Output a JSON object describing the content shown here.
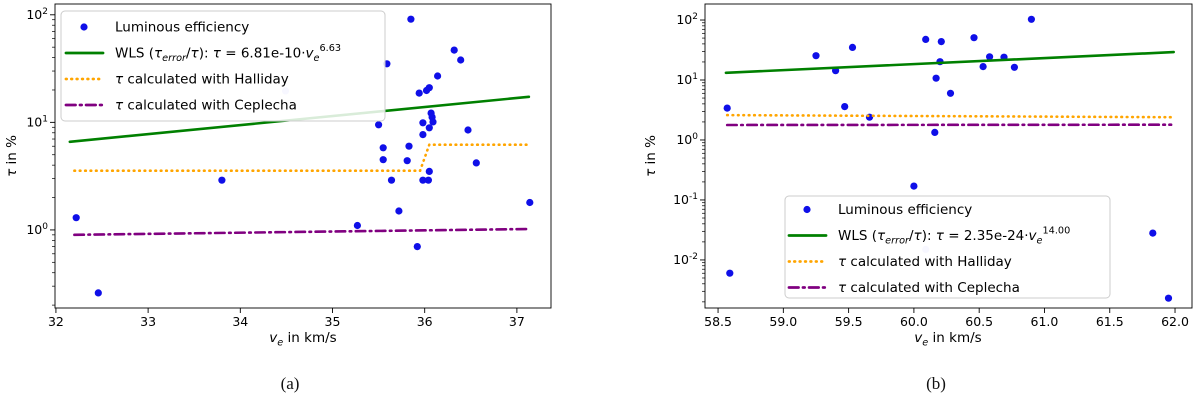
{
  "figure": {
    "caption_a": "(a)",
    "caption_b": "(b)"
  },
  "chart_data": [
    {
      "type": "scatter",
      "panel": "a",
      "caption": "(a)",
      "xlabel": [
        {
          "t": "v",
          "i": 1
        },
        {
          "t": "e",
          "sub": 1,
          "i": 1
        },
        {
          "t": " in km/s"
        }
      ],
      "ylabel": [
        {
          "t": "τ",
          "i": 1
        },
        {
          "t": " in %"
        }
      ],
      "xscale": "linear",
      "yscale": "log",
      "xlim": [
        31.99,
        37.37
      ],
      "ylim": [
        0.188,
        126
      ],
      "xticks": [
        {
          "v": 32,
          "l": "32"
        },
        {
          "v": 33,
          "l": "33"
        },
        {
          "v": 34,
          "l": "34"
        },
        {
          "v": 35,
          "l": "35"
        },
        {
          "v": 36,
          "l": "36"
        },
        {
          "v": 37,
          "l": "37"
        }
      ],
      "ytick_exponents": [
        0,
        1,
        2
      ],
      "legend_loc": "upper left",
      "series": [
        {
          "name": "Luminous efficiency",
          "kind": "scatter",
          "color": "#0f0fe8",
          "points": [
            [
              32.22,
              1.3
            ],
            [
              32.46,
              0.26
            ],
            [
              33.8,
              2.9
            ],
            [
              35.27,
              1.1
            ],
            [
              35.5,
              9.5
            ],
            [
              35.55,
              5.8
            ],
            [
              35.55,
              4.5
            ],
            [
              35.59,
              35
            ],
            [
              35.64,
              2.9
            ],
            [
              35.72,
              1.5
            ],
            [
              35.81,
              4.4
            ],
            [
              35.83,
              6.0
            ],
            [
              35.85,
              91
            ],
            [
              35.92,
              0.7
            ],
            [
              35.94,
              18.7
            ],
            [
              35.98,
              9.9
            ],
            [
              35.98,
              7.7
            ],
            [
              35.98,
              2.9
            ],
            [
              36.02,
              19.8
            ],
            [
              36.04,
              2.9
            ],
            [
              36.05,
              21
            ],
            [
              36.05,
              8.9
            ],
            [
              36.05,
              3.5
            ],
            [
              36.07,
              12.2
            ],
            [
              36.08,
              11.2
            ],
            [
              36.09,
              10.1
            ],
            [
              36.14,
              27
            ],
            [
              36.32,
              47
            ],
            [
              36.39,
              38
            ],
            [
              36.47,
              8.5
            ],
            [
              36.56,
              4.2
            ],
            [
              37.14,
              1.8
            ]
          ],
          "faint_points": [
            [
              34.49,
              19.6
            ]
          ]
        },
        {
          "name": "WLS (tau_error/tau): tau = 6.81e-10*ve^6.63",
          "kind": "line",
          "dash": "solid",
          "color": "#008000",
          "points": [
            [
              32.15,
              6.6
            ],
            [
              37.13,
              17.3
            ]
          ]
        },
        {
          "name": "tau calculated with Halliday",
          "kind": "line",
          "dash": "dotted",
          "color": "#ffa500",
          "points": [
            [
              32.2,
              3.55
            ],
            [
              35.95,
              3.55
            ],
            [
              36.05,
              6.2
            ],
            [
              37.11,
              6.2
            ]
          ]
        },
        {
          "name": "tau calculated with Ceplecha",
          "kind": "line",
          "dash": "dashdot",
          "color": "#800080",
          "points": [
            [
              32.2,
              0.9
            ],
            [
              37.13,
              1.02
            ]
          ]
        }
      ],
      "legend": [
        {
          "marker": "dot",
          "color": "#0f0fe8",
          "label": [
            {
              "t": "Luminous efficiency"
            }
          ]
        },
        {
          "marker": "solid",
          "color": "#008000",
          "label": [
            {
              "t": "WLS ("
            },
            {
              "t": "τ",
              "i": 1
            },
            {
              "t": "error",
              "sub": 1,
              "i": 1
            },
            {
              "t": "/"
            },
            {
              "t": "τ",
              "i": 1
            },
            {
              "t": "): "
            },
            {
              "t": "τ",
              "i": 1
            },
            {
              "t": " = 6.81e-10·"
            },
            {
              "t": "v",
              "i": 1
            },
            {
              "t": "e",
              "sub": 1,
              "i": 1
            },
            {
              "t": "6.63",
              "sup": 1
            }
          ]
        },
        {
          "marker": "dotted",
          "color": "#ffa500",
          "label": [
            {
              "t": "τ",
              "i": 1
            },
            {
              "t": " calculated with Halliday"
            }
          ]
        },
        {
          "marker": "dashdot",
          "color": "#800080",
          "label": [
            {
              "t": "τ",
              "i": 1
            },
            {
              "t": " calculated with Ceplecha"
            }
          ]
        }
      ]
    },
    {
      "type": "scatter",
      "panel": "b",
      "caption": "(b)",
      "xlabel": [
        {
          "t": "v",
          "i": 1
        },
        {
          "t": "e",
          "sub": 1,
          "i": 1
        },
        {
          "t": " in km/s"
        }
      ],
      "ylabel": [
        {
          "t": "τ",
          "i": 1
        },
        {
          "t": " in %"
        }
      ],
      "xscale": "linear",
      "yscale": "log",
      "xlim": [
        58.4,
        62.13
      ],
      "ylim": [
        0.00158,
        185
      ],
      "xticks": [
        {
          "v": 58.5,
          "l": "58.5"
        },
        {
          "v": 59.0,
          "l": "59.0"
        },
        {
          "v": 59.5,
          "l": "59.5"
        },
        {
          "v": 60.0,
          "l": "60.0"
        },
        {
          "v": 60.5,
          "l": "60.5"
        },
        {
          "v": 61.0,
          "l": "61.0"
        },
        {
          "v": 61.5,
          "l": "61.5"
        },
        {
          "v": 62.0,
          "l": "62.0"
        }
      ],
      "ytick_exponents": [
        -2,
        -1,
        0,
        1,
        2
      ],
      "legend_loc": "lower center",
      "series": [
        {
          "name": "Luminous efficiency",
          "kind": "scatter",
          "color": "#0f0fe8",
          "points": [
            [
              58.57,
              3.4
            ],
            [
              58.59,
              0.006
            ],
            [
              59.25,
              25.4
            ],
            [
              59.4,
              14.3
            ],
            [
              59.47,
              3.6
            ],
            [
              59.53,
              35
            ],
            [
              59.66,
              2.4
            ],
            [
              60.0,
              0.17
            ],
            [
              60.09,
              47.6
            ],
            [
              60.16,
              1.34
            ],
            [
              60.17,
              10.7
            ],
            [
              60.2,
              20.2
            ],
            [
              60.21,
              43.6
            ],
            [
              60.28,
              6.0
            ],
            [
              60.46,
              50.7
            ],
            [
              60.53,
              16.7
            ],
            [
              60.58,
              24.4
            ],
            [
              60.69,
              24
            ],
            [
              60.77,
              16.3
            ],
            [
              60.9,
              103
            ],
            [
              61.83,
              0.028
            ],
            [
              61.95,
              0.0023
            ]
          ],
          "faint_points": [
            [
              60.09,
              0.015
            ]
          ]
        },
        {
          "name": "WLS (tau_error/tau): tau = 2.35e-24*ve^14.00",
          "kind": "line",
          "dash": "solid",
          "color": "#008000",
          "points": [
            [
              58.56,
              13.2
            ],
            [
              61.99,
              29.2
            ]
          ]
        },
        {
          "name": "tau calculated with Halliday",
          "kind": "line",
          "dash": "dotted",
          "color": "#ffa500",
          "points": [
            [
              58.57,
              2.6
            ],
            [
              61.97,
              2.4
            ]
          ]
        },
        {
          "name": "tau calculated with Ceplecha",
          "kind": "line",
          "dash": "dashdot",
          "color": "#800080",
          "points": [
            [
              58.57,
              1.78
            ],
            [
              61.97,
              1.8
            ]
          ]
        }
      ],
      "legend": [
        {
          "marker": "dot",
          "color": "#0f0fe8",
          "label": [
            {
              "t": "Luminous efficiency"
            }
          ]
        },
        {
          "marker": "solid",
          "color": "#008000",
          "label": [
            {
              "t": "WLS ("
            },
            {
              "t": "τ",
              "i": 1
            },
            {
              "t": "error",
              "sub": 1,
              "i": 1
            },
            {
              "t": "/"
            },
            {
              "t": "τ",
              "i": 1
            },
            {
              "t": "): "
            },
            {
              "t": "τ",
              "i": 1
            },
            {
              "t": " = 2.35e-24·"
            },
            {
              "t": "v",
              "i": 1
            },
            {
              "t": "e",
              "sub": 1,
              "i": 1
            },
            {
              "t": "14.00",
              "sup": 1
            }
          ]
        },
        {
          "marker": "dotted",
          "color": "#ffa500",
          "label": [
            {
              "t": "τ",
              "i": 1
            },
            {
              "t": " calculated with Halliday"
            }
          ]
        },
        {
          "marker": "dashdot",
          "color": "#800080",
          "label": [
            {
              "t": "τ",
              "i": 1
            },
            {
              "t": " calculated with Ceplecha"
            }
          ]
        }
      ]
    }
  ]
}
